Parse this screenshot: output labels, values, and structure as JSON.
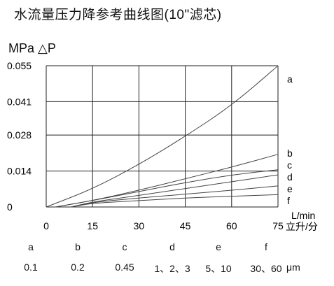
{
  "chart_data": {
    "type": "line",
    "title": "水流量压力降参考曲线图(10\"滤芯)",
    "ylabel": "MPa △P",
    "xlabel": "L/min",
    "xlabel2": "立升/分",
    "xlim": [
      0,
      75
    ],
    "ylim": [
      0,
      0.055
    ],
    "x_ticks": [
      "0",
      "15",
      "30",
      "45",
      "60",
      "75"
    ],
    "y_ticks": [
      "0",
      "0.014",
      "0.028",
      "0.041",
      "0.055"
    ],
    "x_tick_values": [
      0,
      15,
      30,
      45,
      60,
      75
    ],
    "y_tick_values": [
      0,
      0.014,
      0.028,
      0.041,
      0.055
    ],
    "grid": true,
    "series": [
      {
        "name": "a",
        "x": [
          0,
          15,
          30,
          45,
          60,
          75
        ],
        "y": [
          0,
          0.007,
          0.0165,
          0.0275,
          0.0395,
          0.055
        ]
      },
      {
        "name": "b",
        "x": [
          3,
          15,
          30,
          45,
          60,
          75
        ],
        "y": [
          0,
          0.0025,
          0.0065,
          0.011,
          0.0155,
          0.0205
        ]
      },
      {
        "name": "c",
        "x": [
          3,
          15,
          30,
          45,
          60,
          75
        ],
        "y": [
          0,
          0.0025,
          0.006,
          0.0095,
          0.0125,
          0.0145
        ]
      },
      {
        "name": "d",
        "x": [
          8,
          15,
          30,
          45,
          60,
          75
        ],
        "y": [
          0,
          0.002,
          0.0045,
          0.0072,
          0.0098,
          0.0125
        ]
      },
      {
        "name": "e",
        "x": [
          8,
          15,
          30,
          45,
          60,
          75
        ],
        "y": [
          0,
          0.0018,
          0.0035,
          0.005,
          0.0065,
          0.0082
        ]
      },
      {
        "name": "f",
        "x": [
          8,
          15,
          30,
          45,
          60,
          75
        ],
        "y": [
          0,
          0.0015,
          0.0025,
          0.0035,
          0.0042,
          0.0048
        ]
      }
    ],
    "legend": {
      "keys": [
        "a",
        "b",
        "c",
        "d",
        "e",
        "f"
      ],
      "values": [
        "0.1",
        "0.2",
        "0.45",
        "1、2、3",
        "5、10",
        "30、60"
      ],
      "unit": "μm"
    }
  },
  "colors": {
    "curve": "#444444",
    "grid": "#222222",
    "axis": "#111111"
  }
}
